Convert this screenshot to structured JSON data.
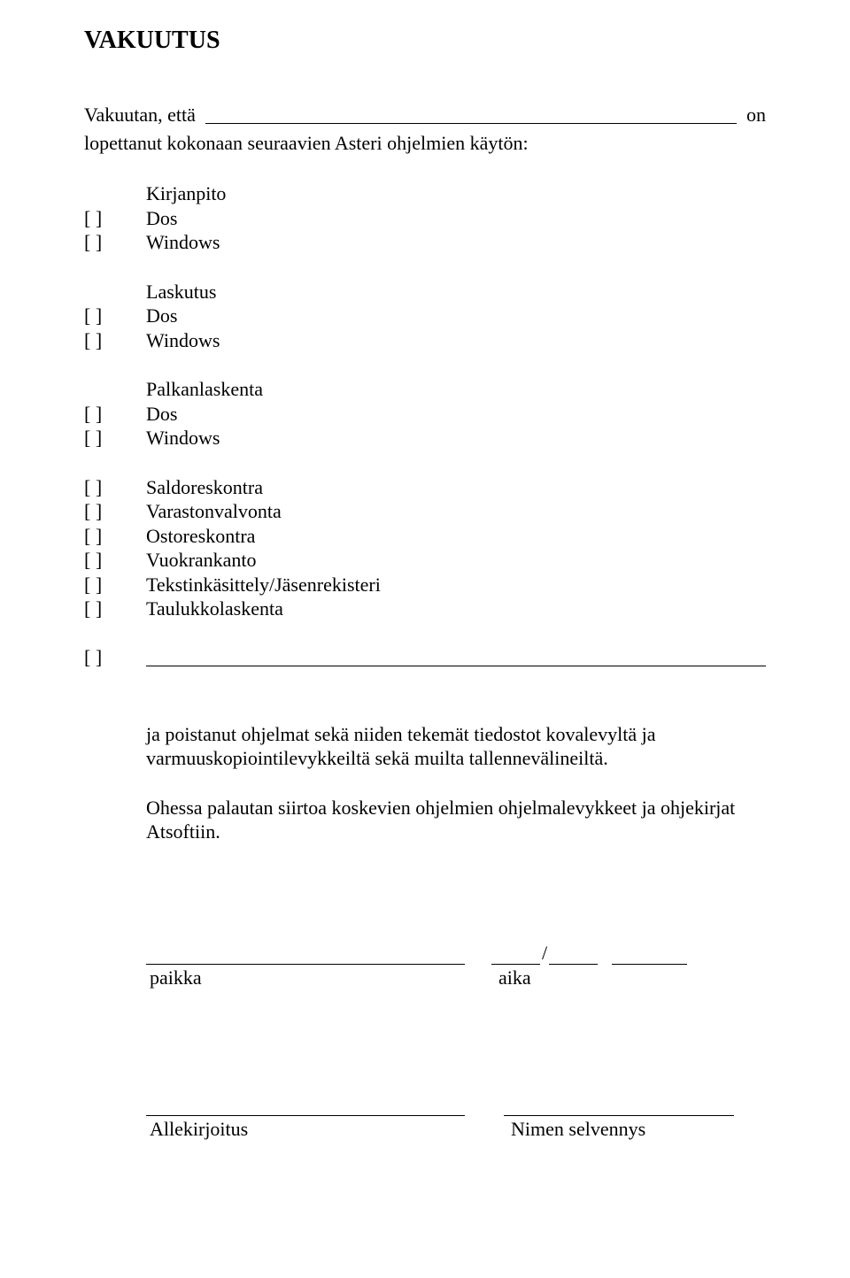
{
  "heading": "VAKUUTUS",
  "intro_label": "Vakuutan, että ",
  "intro_suffix": " on",
  "line2": "lopettanut kokonaan seuraavien Asteri ohjelmien käytön:",
  "groups": [
    {
      "header": "Kirjanpito",
      "items": [
        {
          "cb": "[ ]",
          "label": "Dos"
        },
        {
          "cb": "[ ]",
          "label": "Windows"
        }
      ]
    },
    {
      "header": "Laskutus",
      "items": [
        {
          "cb": "[ ]",
          "label": "Dos"
        },
        {
          "cb": "[ ]",
          "label": "Windows"
        }
      ]
    },
    {
      "header": "Palkanlaskenta",
      "items": [
        {
          "cb": "[ ]",
          "label": "Dos"
        },
        {
          "cb": "[ ]",
          "label": "Windows"
        }
      ]
    }
  ],
  "flat_items": [
    {
      "cb": "[ ]",
      "label": "Saldoreskontra"
    },
    {
      "cb": "[ ]",
      "label": "Varastonvalvonta"
    },
    {
      "cb": "[ ]",
      "label": "Ostoreskontra"
    },
    {
      "cb": "[ ]",
      "label": "Vuokrankanto"
    },
    {
      "cb": "[ ]",
      "label": "Tekstinkäsittely/Jäsenrekisteri"
    },
    {
      "cb": "[ ]",
      "label": "Taulukkolaskenta"
    }
  ],
  "blank_cb": "[ ]",
  "para1": "ja poistanut ohjelmat sekä niiden tekemät tiedostot kovalevyltä ja varmuuskopiointilevykkeiltä sekä muilta tallennevälineiltä.",
  "para2": "Ohessa palautan siirtoa koskevien ohjelmien ohjelmalevykkeet ja ohjekirjat Atsoftiin.",
  "date_slash": "/",
  "label_paikka": "paikka",
  "label_aika": "aika",
  "label_allekirjoitus": "Allekirjoitus",
  "label_nimen": "Nimen selvennys"
}
